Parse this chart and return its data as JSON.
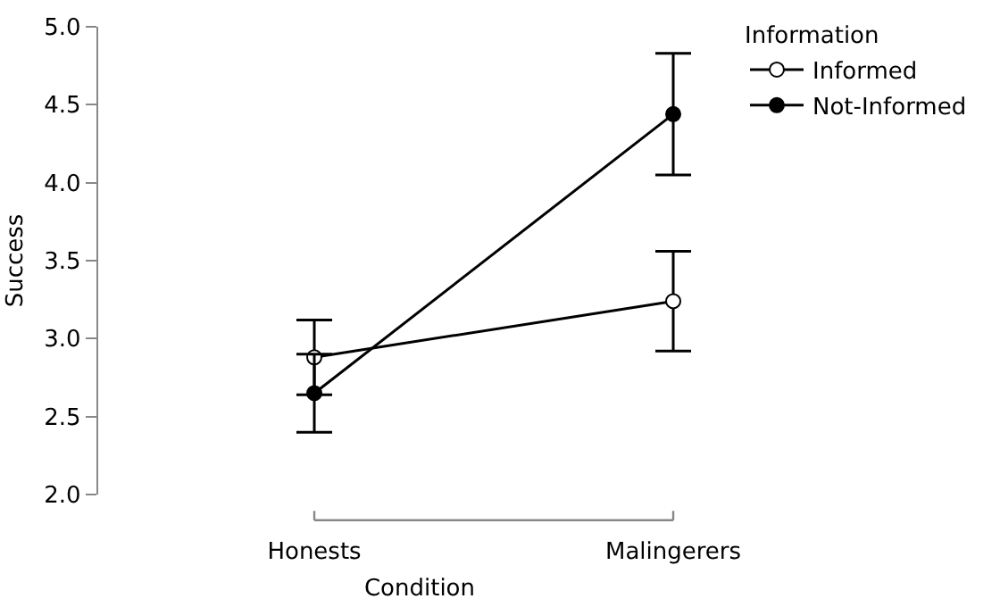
{
  "chart_data": {
    "type": "line",
    "xlabel": "Condition",
    "ylabel": "Success",
    "legend_title": "Information",
    "categories": [
      "Honests",
      "Malingerers"
    ],
    "series": [
      {
        "name": "Informed",
        "color": "#ffffff",
        "values": [
          2.88,
          3.24
        ],
        "errors": [
          0.24,
          0.32
        ]
      },
      {
        "name": "Not-Informed",
        "color": "#000000",
        "values": [
          2.65,
          4.44
        ],
        "errors": [
          0.25,
          0.39
        ]
      }
    ],
    "ylim": [
      2,
      5
    ],
    "yticks": [
      {
        "value": 2,
        "label": "2.0"
      },
      {
        "value": 2.5,
        "label": "2.5"
      },
      {
        "value": 3,
        "label": "3.0"
      },
      {
        "value": 3.5,
        "label": "3.5"
      },
      {
        "value": 4,
        "label": "4.0"
      },
      {
        "value": 4.5,
        "label": "4.5"
      },
      {
        "value": 5,
        "label": "5.0"
      }
    ],
    "grid": false,
    "legend": "top right",
    "marker": "circle",
    "line_style": "solid"
  }
}
